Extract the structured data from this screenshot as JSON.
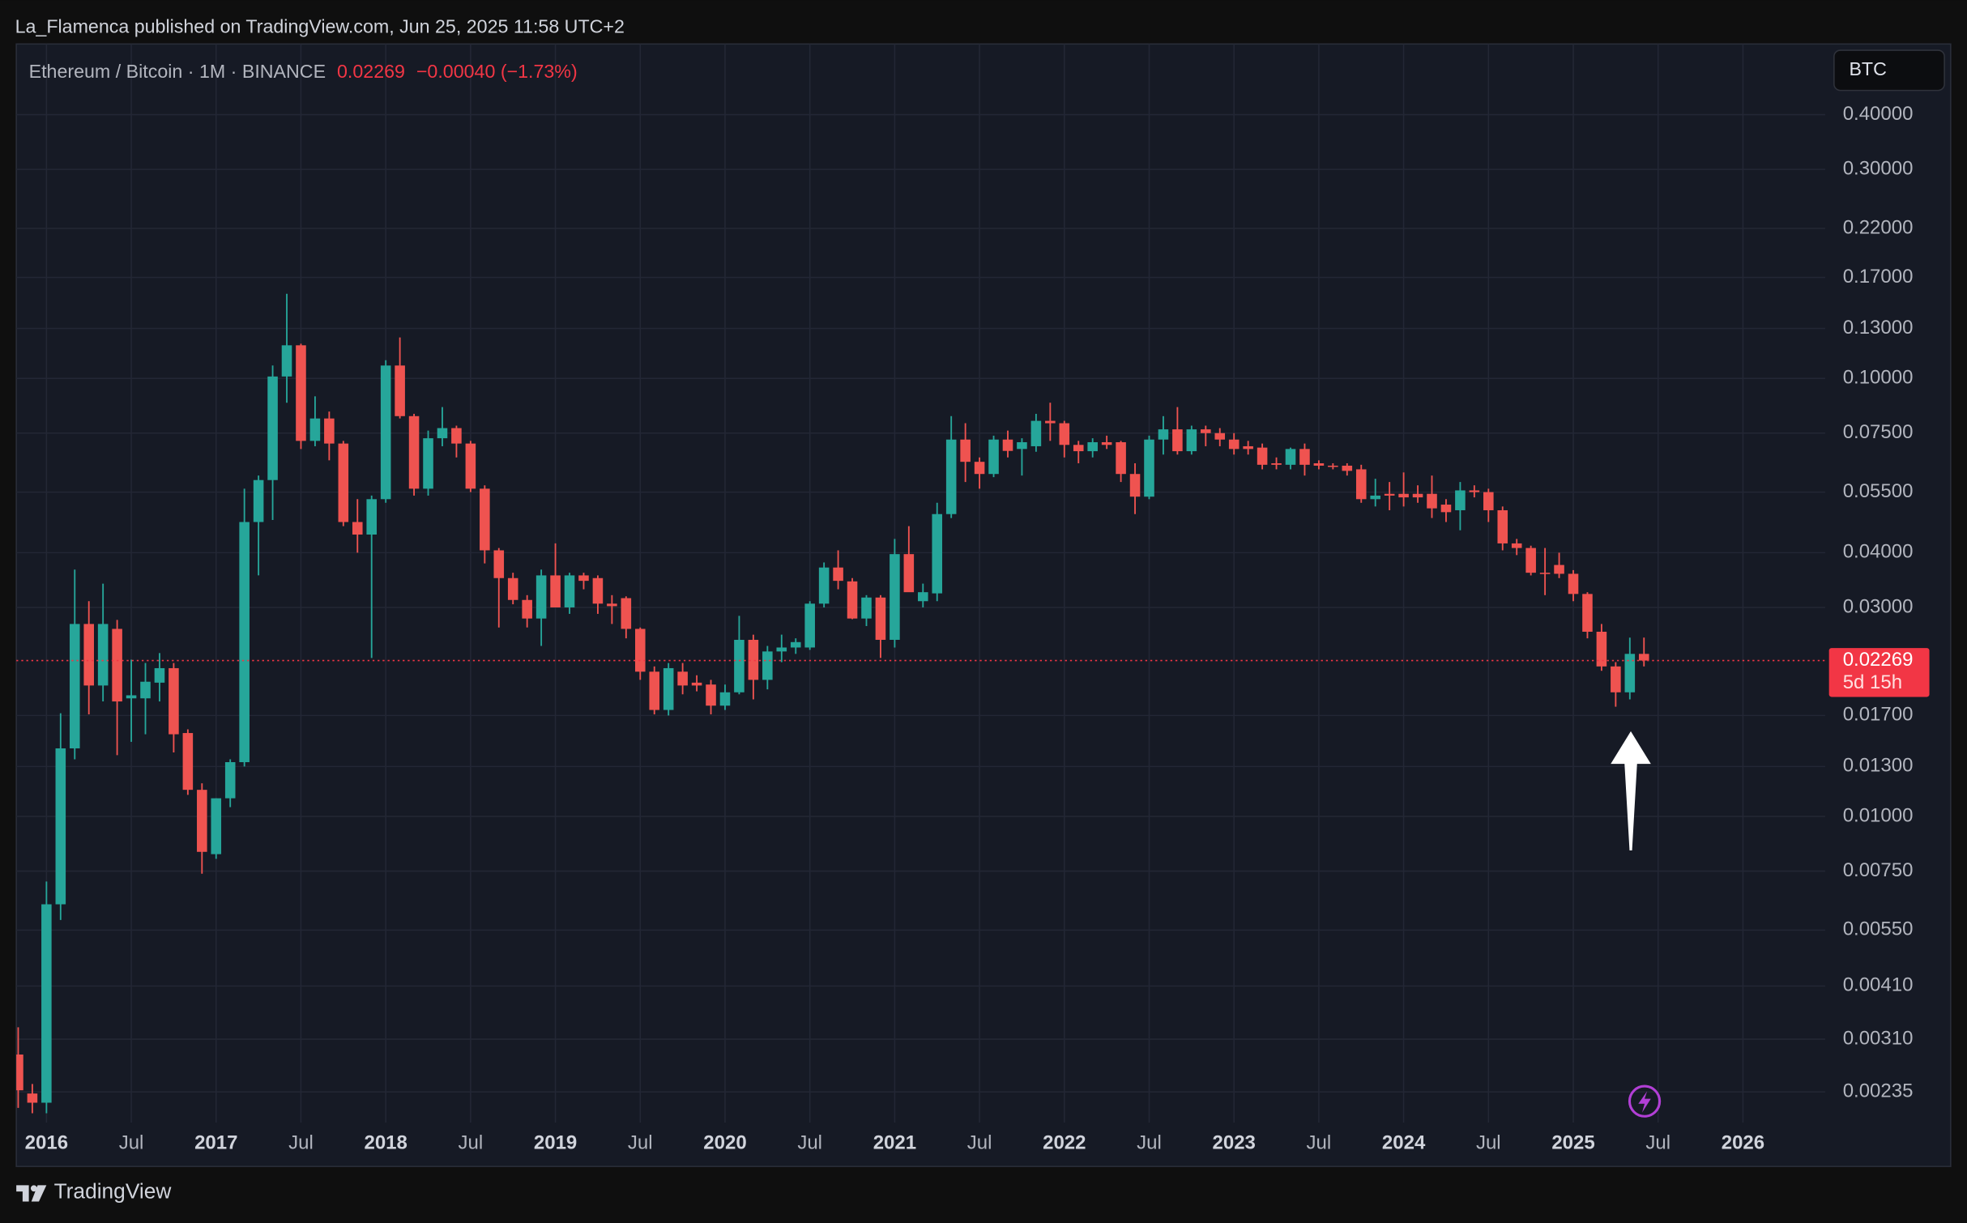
{
  "header": {
    "published": "La_Flamenca published on TradingView.com, Jun 25, 2025 11:58 UTC+2",
    "footer": "TradingView"
  },
  "chart_data": {
    "type": "candlestick",
    "symbol": "Ethereum / Bitcoin · 1M · BINANCE",
    "last_price": "0.02269",
    "change": "−0.00040 (−1.73%)",
    "currency": "BTC",
    "last": {
      "value": 0.02269,
      "label": "0.02269",
      "countdown": "5d 15h"
    },
    "log_scale": true,
    "grid": true,
    "up_color": "#26a69a",
    "down_color": "#ef5350",
    "xlim": [
      "2015-11",
      "2026-07"
    ],
    "ylim": [
      0.002,
      0.58
    ],
    "yticks": [
      {
        "value": 0.4,
        "label": "0.40000"
      },
      {
        "value": 0.3,
        "label": "0.30000"
      },
      {
        "value": 0.22,
        "label": "0.22000"
      },
      {
        "value": 0.17,
        "label": "0.17000"
      },
      {
        "value": 0.13,
        "label": "0.13000"
      },
      {
        "value": 0.1,
        "label": "0.10000"
      },
      {
        "value": 0.075,
        "label": "0.07500"
      },
      {
        "value": 0.055,
        "label": "0.05500"
      },
      {
        "value": 0.04,
        "label": "0.04000"
      },
      {
        "value": 0.03,
        "label": "0.03000"
      },
      {
        "value": 0.017,
        "label": "0.01700"
      },
      {
        "value": 0.013,
        "label": "0.01300"
      },
      {
        "value": 0.01,
        "label": "0.01000"
      },
      {
        "value": 0.0075,
        "label": "0.00750"
      },
      {
        "value": 0.0055,
        "label": "0.00550"
      },
      {
        "value": 0.0041,
        "label": "0.00410"
      },
      {
        "value": 0.0031,
        "label": "0.00310"
      },
      {
        "value": 0.00235,
        "label": "0.00235"
      }
    ],
    "xticks": [
      {
        "value": "2016-01",
        "label": "2016"
      },
      {
        "value": "2016-07",
        "label": "Jul"
      },
      {
        "value": "2017-01",
        "label": "2017"
      },
      {
        "value": "2017-07",
        "label": "Jul"
      },
      {
        "value": "2018-01",
        "label": "2018"
      },
      {
        "value": "2018-07",
        "label": "Jul"
      },
      {
        "value": "2019-01",
        "label": "2019"
      },
      {
        "value": "2019-07",
        "label": "Jul"
      },
      {
        "value": "2020-01",
        "label": "2020"
      },
      {
        "value": "2020-07",
        "label": "Jul"
      },
      {
        "value": "2021-01",
        "label": "2021"
      },
      {
        "value": "2021-07",
        "label": "Jul"
      },
      {
        "value": "2022-01",
        "label": "2022"
      },
      {
        "value": "2022-07",
        "label": "Jul"
      },
      {
        "value": "2023-01",
        "label": "2023"
      },
      {
        "value": "2023-07",
        "label": "Jul"
      },
      {
        "value": "2024-01",
        "label": "2024"
      },
      {
        "value": "2024-07",
        "label": "Jul"
      },
      {
        "value": "2025-01",
        "label": "2025"
      },
      {
        "value": "2025-07",
        "label": "Jul"
      },
      {
        "value": "2026-01",
        "label": "2026"
      }
    ],
    "x": [
      "2015-11",
      "2015-12",
      "2016-01",
      "2016-02",
      "2016-03",
      "2016-04",
      "2016-05",
      "2016-06",
      "2016-07",
      "2016-08",
      "2016-09",
      "2016-10",
      "2016-11",
      "2016-12",
      "2017-01",
      "2017-02",
      "2017-03",
      "2017-04",
      "2017-05",
      "2017-06",
      "2017-07",
      "2017-08",
      "2017-09",
      "2017-10",
      "2017-11",
      "2017-12",
      "2018-01",
      "2018-02",
      "2018-03",
      "2018-04",
      "2018-05",
      "2018-06",
      "2018-07",
      "2018-08",
      "2018-09",
      "2018-10",
      "2018-11",
      "2018-12",
      "2019-01",
      "2019-02",
      "2019-03",
      "2019-04",
      "2019-05",
      "2019-06",
      "2019-07",
      "2019-08",
      "2019-09",
      "2019-10",
      "2019-11",
      "2019-12",
      "2020-01",
      "2020-02",
      "2020-03",
      "2020-04",
      "2020-05",
      "2020-06",
      "2020-07",
      "2020-08",
      "2020-09",
      "2020-10",
      "2020-11",
      "2020-12",
      "2021-01",
      "2021-02",
      "2021-03",
      "2021-04",
      "2021-05",
      "2021-06",
      "2021-07",
      "2021-08",
      "2021-09",
      "2021-10",
      "2021-11",
      "2021-12",
      "2022-01",
      "2022-02",
      "2022-03",
      "2022-04",
      "2022-05",
      "2022-06",
      "2022-07",
      "2022-08",
      "2022-09",
      "2022-10",
      "2022-11",
      "2022-12",
      "2023-01",
      "2023-02",
      "2023-03",
      "2023-04",
      "2023-05",
      "2023-06",
      "2023-07",
      "2023-08",
      "2023-09",
      "2023-10",
      "2023-11",
      "2023-12",
      "2024-01",
      "2024-02",
      "2024-03",
      "2024-04",
      "2024-05",
      "2024-06",
      "2024-07",
      "2024-08",
      "2024-09",
      "2024-10",
      "2024-11",
      "2024-12",
      "2025-01",
      "2025-02",
      "2025-03",
      "2025-04",
      "2025-05",
      "2025-06"
    ],
    "open": [
      0.00286,
      0.00233,
      0.00222,
      0.0063,
      0.0143,
      0.0275,
      0.0199,
      0.0268,
      0.0186,
      0.0186,
      0.0202,
      0.0218,
      0.0155,
      0.0115,
      0.0082,
      0.011,
      0.0133,
      0.047,
      0.0586,
      0.101,
      0.119,
      0.072,
      0.081,
      0.071,
      0.047,
      0.044,
      0.053,
      0.107,
      0.082,
      0.056,
      0.073,
      0.077,
      0.071,
      0.056,
      0.0405,
      0.035,
      0.0312,
      0.0283,
      0.0355,
      0.03,
      0.0355,
      0.035,
      0.0306,
      0.0315,
      0.0268,
      0.0214,
      0.0175,
      0.0214,
      0.0202,
      0.02,
      0.0179,
      0.0192,
      0.0253,
      0.0205,
      0.0238,
      0.0243,
      0.0243,
      0.0306,
      0.037,
      0.0344,
      0.0283,
      0.0316,
      0.0253,
      0.0397,
      0.031,
      0.0323,
      0.049,
      0.0725,
      0.0645,
      0.0605,
      0.0725,
      0.069,
      0.07,
      0.08,
      0.079,
      0.0705,
      0.0682,
      0.0715,
      0.0715,
      0.0605,
      0.0537,
      0.0725,
      0.0765,
      0.0682,
      0.0765,
      0.075,
      0.0725,
      0.07,
      0.0695,
      0.064,
      0.0635,
      0.069,
      0.064,
      0.0632,
      0.0632,
      0.062,
      0.053,
      0.0545,
      0.0545,
      0.0545,
      0.0545,
      0.0515,
      0.05,
      0.0555,
      0.055,
      0.05,
      0.042,
      0.041,
      0.036,
      0.0375,
      0.0358,
      0.0322,
      0.0264,
      0.022,
      0.0192,
      0.0235
    ],
    "high": [
      0.0033,
      0.00245,
      0.0071,
      0.0172,
      0.0366,
      0.031,
      0.034,
      0.0281,
      0.0228,
      0.0224,
      0.0236,
      0.0224,
      0.0158,
      0.0119,
      0.011,
      0.0135,
      0.056,
      0.06,
      0.107,
      0.156,
      0.12,
      0.091,
      0.084,
      0.072,
      0.053,
      0.054,
      0.11,
      0.124,
      0.083,
      0.076,
      0.086,
      0.078,
      0.072,
      0.057,
      0.041,
      0.036,
      0.032,
      0.0366,
      0.042,
      0.036,
      0.036,
      0.0355,
      0.032,
      0.0318,
      0.027,
      0.022,
      0.0224,
      0.0224,
      0.021,
      0.0205,
      0.02,
      0.0287,
      0.026,
      0.0245,
      0.026,
      0.0255,
      0.031,
      0.038,
      0.0405,
      0.035,
      0.032,
      0.032,
      0.043,
      0.046,
      0.034,
      0.052,
      0.082,
      0.079,
      0.066,
      0.074,
      0.076,
      0.073,
      0.083,
      0.088,
      0.08,
      0.072,
      0.073,
      0.074,
      0.072,
      0.064,
      0.074,
      0.082,
      0.086,
      0.078,
      0.078,
      0.077,
      0.075,
      0.072,
      0.071,
      0.066,
      0.0695,
      0.071,
      0.065,
      0.064,
      0.064,
      0.0635,
      0.059,
      0.058,
      0.061,
      0.057,
      0.06,
      0.053,
      0.058,
      0.057,
      0.056,
      0.051,
      0.043,
      0.0415,
      0.041,
      0.04,
      0.0365,
      0.0325,
      0.0275,
      0.0225,
      0.0256,
      0.0256
    ],
    "low": [
      0.00216,
      0.0021,
      0.0021,
      0.0058,
      0.0135,
      0.0171,
      0.0183,
      0.0138,
      0.0148,
      0.0154,
      0.0183,
      0.014,
      0.0112,
      0.0074,
      0.008,
      0.0105,
      0.013,
      0.0355,
      0.0475,
      0.088,
      0.069,
      0.07,
      0.065,
      0.046,
      0.04,
      0.023,
      0.052,
      0.081,
      0.054,
      0.054,
      0.07,
      0.066,
      0.055,
      0.0378,
      0.027,
      0.0305,
      0.027,
      0.0245,
      0.03,
      0.029,
      0.033,
      0.029,
      0.0275,
      0.0255,
      0.0205,
      0.0171,
      0.017,
      0.019,
      0.0193,
      0.0171,
      0.0175,
      0.019,
      0.0185,
      0.0195,
      0.0225,
      0.0235,
      0.024,
      0.03,
      0.033,
      0.0282,
      0.0272,
      0.023,
      0.0243,
      0.033,
      0.03,
      0.031,
      0.048,
      0.058,
      0.056,
      0.0595,
      0.066,
      0.06,
      0.068,
      0.072,
      0.066,
      0.064,
      0.066,
      0.069,
      0.058,
      0.049,
      0.053,
      0.067,
      0.067,
      0.067,
      0.07,
      0.07,
      0.067,
      0.067,
      0.062,
      0.062,
      0.062,
      0.06,
      0.062,
      0.062,
      0.06,
      0.052,
      0.051,
      0.05,
      0.051,
      0.052,
      0.048,
      0.047,
      0.045,
      0.0535,
      0.047,
      0.0405,
      0.0395,
      0.0355,
      0.032,
      0.035,
      0.031,
      0.0255,
      0.0215,
      0.0178,
      0.0185,
      0.022
    ],
    "close": [
      0.00237,
      0.00222,
      0.0063,
      0.0143,
      0.0275,
      0.0199,
      0.0275,
      0.0183,
      0.0189,
      0.0203,
      0.0218,
      0.0154,
      0.0115,
      0.0083,
      0.011,
      0.0133,
      0.047,
      0.0586,
      0.101,
      0.119,
      0.072,
      0.081,
      0.071,
      0.047,
      0.044,
      0.053,
      0.107,
      0.082,
      0.056,
      0.073,
      0.077,
      0.071,
      0.056,
      0.0405,
      0.035,
      0.0312,
      0.0283,
      0.0355,
      0.03,
      0.0355,
      0.0345,
      0.0306,
      0.0302,
      0.0268,
      0.0214,
      0.0175,
      0.0218,
      0.0199,
      0.0199,
      0.0179,
      0.0192,
      0.0253,
      0.0205,
      0.0238,
      0.0243,
      0.025,
      0.0306,
      0.037,
      0.0345,
      0.0283,
      0.0316,
      0.0253,
      0.0397,
      0.0325,
      0.0325,
      0.049,
      0.0725,
      0.0645,
      0.0605,
      0.0725,
      0.0683,
      0.0715,
      0.08,
      0.079,
      0.0705,
      0.0682,
      0.0715,
      0.0705,
      0.0605,
      0.0537,
      0.0725,
      0.0765,
      0.0682,
      0.0765,
      0.075,
      0.0725,
      0.069,
      0.069,
      0.0635,
      0.0635,
      0.069,
      0.0635,
      0.0632,
      0.063,
      0.0615,
      0.053,
      0.054,
      0.054,
      0.0535,
      0.0535,
      0.0505,
      0.0495,
      0.0555,
      0.055,
      0.05,
      0.042,
      0.041,
      0.036,
      0.0358,
      0.0358,
      0.0322,
      0.0264,
      0.022,
      0.0192,
      0.0235,
      0.02269
    ]
  }
}
